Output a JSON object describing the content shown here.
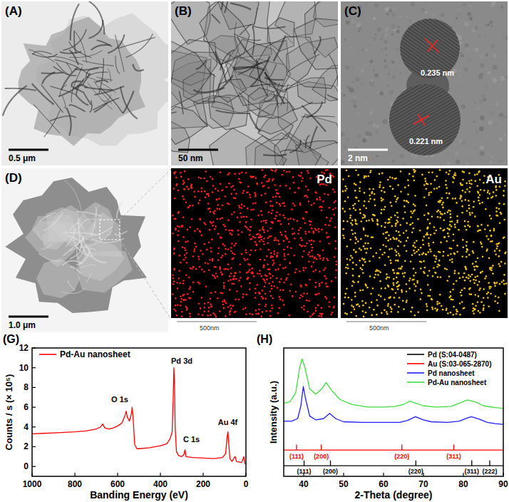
{
  "panels": [
    {
      "label": "(A)",
      "scale_bar": "0.5 μm"
    },
    {
      "label": "(B)",
      "scale_bar": "50 nm"
    },
    {
      "label": "(C)",
      "scale_bar": "2 nm",
      "annotations": [
        "0.235 nm",
        "0.221 nm"
      ]
    },
    {
      "label": "(D)",
      "scale_bar": "1.0 μm"
    },
    {
      "element": "Pd",
      "scale_bar": "500nm",
      "color": "#ff2020"
    },
    {
      "element": "Au",
      "scale_bar": "500nm",
      "color": "#f2c418"
    }
  ],
  "chart_data": [
    {
      "type": "line",
      "title": "(G)",
      "xlabel": "Banding Energy (eV)",
      "ylabel": "Counts / s (× 10⁵)",
      "xlim": [
        1000,
        0
      ],
      "xticks": [
        1000,
        800,
        600,
        400,
        200,
        0
      ],
      "ylim": [
        -1,
        12
      ],
      "yticks": [
        0,
        2,
        4,
        6,
        8,
        10,
        12
      ],
      "legend": "upper left",
      "series": [
        {
          "name": "Pd-Au nanosheet",
          "color": "#ff0000",
          "x": [
            1000,
            950,
            900,
            850,
            800,
            750,
            720,
            700,
            680,
            670,
            660,
            640,
            620,
            600,
            580,
            565,
            560,
            555,
            545,
            535,
            532,
            528,
            520,
            510,
            500,
            450,
            400,
            370,
            355,
            345,
            340,
            337,
            334,
            331,
            325,
            315,
            300,
            290,
            285,
            280,
            250,
            200,
            150,
            110,
            95,
            88,
            84,
            80,
            75,
            65,
            55,
            50,
            45,
            20,
            10,
            5,
            0
          ],
          "values": [
            3.3,
            3.35,
            3.4,
            3.45,
            3.5,
            3.6,
            3.7,
            3.8,
            4.0,
            4.3,
            3.9,
            3.8,
            3.9,
            4.1,
            4.4,
            5.2,
            5.6,
            5.0,
            4.6,
            5.4,
            6.0,
            5.0,
            2.2,
            1.8,
            1.8,
            1.9,
            2.1,
            2.3,
            2.8,
            3.5,
            7.0,
            10.0,
            8.5,
            4.0,
            1.5,
            1.1,
            1.0,
            1.2,
            1.7,
            1.0,
            0.9,
            0.85,
            0.8,
            0.9,
            1.3,
            3.0,
            3.5,
            2.2,
            0.8,
            0.5,
            0.9,
            1.0,
            0.5,
            0.4,
            1.0,
            0.3,
            0.2
          ]
        }
      ],
      "annotations": [
        {
          "text": "O 1s",
          "x": 590,
          "y": 6.5
        },
        {
          "text": "Pd 3d",
          "x": 300,
          "y": 10.4
        },
        {
          "text": "C 1s",
          "x": 255,
          "y": 2.5
        },
        {
          "text": "Au 4f",
          "x": 85,
          "y": 4.2
        }
      ]
    },
    {
      "type": "line",
      "title": "(H)",
      "xlabel": "2-Theta (degree)",
      "ylabel": "Intensity (a.u.)",
      "xlim": [
        35,
        90
      ],
      "xticks": [
        40,
        50,
        60,
        70,
        80,
        90
      ],
      "ylim": [
        0,
        100
      ],
      "tick_labels": "x",
      "legend": "upper right",
      "series": [
        {
          "name": "Pd (S:04-0487)",
          "color": "#000000",
          "x": [
            35,
            40.1,
            40.1,
            40.1,
            46.7,
            46.7,
            46.7,
            68.1,
            68.1,
            68.1,
            82.1,
            82.1,
            82.1,
            86.6,
            86.6,
            86.6,
            90
          ],
          "values": [
            8.3,
            8.3,
            12.2,
            8.3,
            8.3,
            12.2,
            8.3,
            8.3,
            12.2,
            8.3,
            8.3,
            12.2,
            8.3,
            8.3,
            12.2,
            8.3,
            8.3
          ]
        },
        {
          "name": "Au (S:03-065-2870)",
          "color": "#ff0000",
          "x": [
            35,
            38.2,
            38.2,
            38.2,
            44.4,
            44.4,
            44.4,
            64.6,
            64.6,
            64.6,
            77.6,
            77.6,
            77.6,
            90
          ],
          "values": [
            20.5,
            20.5,
            24.5,
            20.5,
            20.5,
            24.5,
            20.5,
            20.5,
            24.5,
            20.5,
            20.5,
            24.5,
            20.5,
            20.5
          ]
        },
        {
          "name": "Pd nanosheet",
          "color": "#1f1fff",
          "x": [
            35,
            37,
            38.5,
            39.3,
            39.9,
            40.5,
            41.5,
            43,
            45,
            46.5,
            48,
            50,
            55,
            60,
            64,
            66,
            68,
            70,
            72,
            76,
            79,
            81,
            82,
            84,
            86,
            88,
            90
          ],
          "values": [
            43,
            43,
            45,
            55,
            70,
            60,
            47,
            44,
            45,
            49,
            45,
            42.5,
            42,
            42,
            42,
            43.5,
            46.5,
            44,
            42.5,
            42,
            43,
            45.5,
            46.5,
            44.5,
            42,
            41,
            40.5
          ]
        },
        {
          "name": "Pd-Au nanosheet",
          "color": "#3ce03c",
          "x": [
            35,
            36.5,
            38,
            39,
            39.6,
            40.3,
            41.5,
            43,
            44.5,
            45.6,
            47,
            49,
            52,
            56,
            60,
            63,
            65,
            66.5,
            68,
            70,
            73,
            77,
            79,
            81,
            83,
            85,
            88,
            90
          ],
          "values": [
            57,
            58,
            65,
            85,
            91.5,
            85,
            68,
            64,
            68,
            73,
            67,
            60,
            56,
            54,
            54,
            54.5,
            56,
            58.5,
            57,
            55,
            54,
            54.5,
            57,
            59.5,
            58,
            55,
            53.5,
            53
          ]
        }
      ],
      "annotations": [
        {
          "text": "(111)",
          "x": 38.2,
          "y": 13.9,
          "color": "#ff0000"
        },
        {
          "text": "(200)",
          "x": 44.4,
          "y": 13.9,
          "color": "#ff0000"
        },
        {
          "text": "(220)",
          "x": 64.6,
          "y": 13.9,
          "color": "#ff0000"
        },
        {
          "text": "(311)",
          "x": 77.6,
          "y": 13.9,
          "color": "#ff0000"
        },
        {
          "text": "(111)",
          "x": 40.1,
          "y": 2.2,
          "color": "#000000"
        },
        {
          "text": "(200)",
          "x": 46.7,
          "y": 2.2,
          "color": "#000000"
        },
        {
          "text": "(220)",
          "x": 68.1,
          "y": 2.2,
          "color": "#000000"
        },
        {
          "text": "(311)",
          "x": 82.1,
          "y": 2.2,
          "color": "#000000"
        },
        {
          "text": "(222)",
          "x": 86.6,
          "y": 2.2,
          "color": "#000000"
        }
      ]
    }
  ]
}
